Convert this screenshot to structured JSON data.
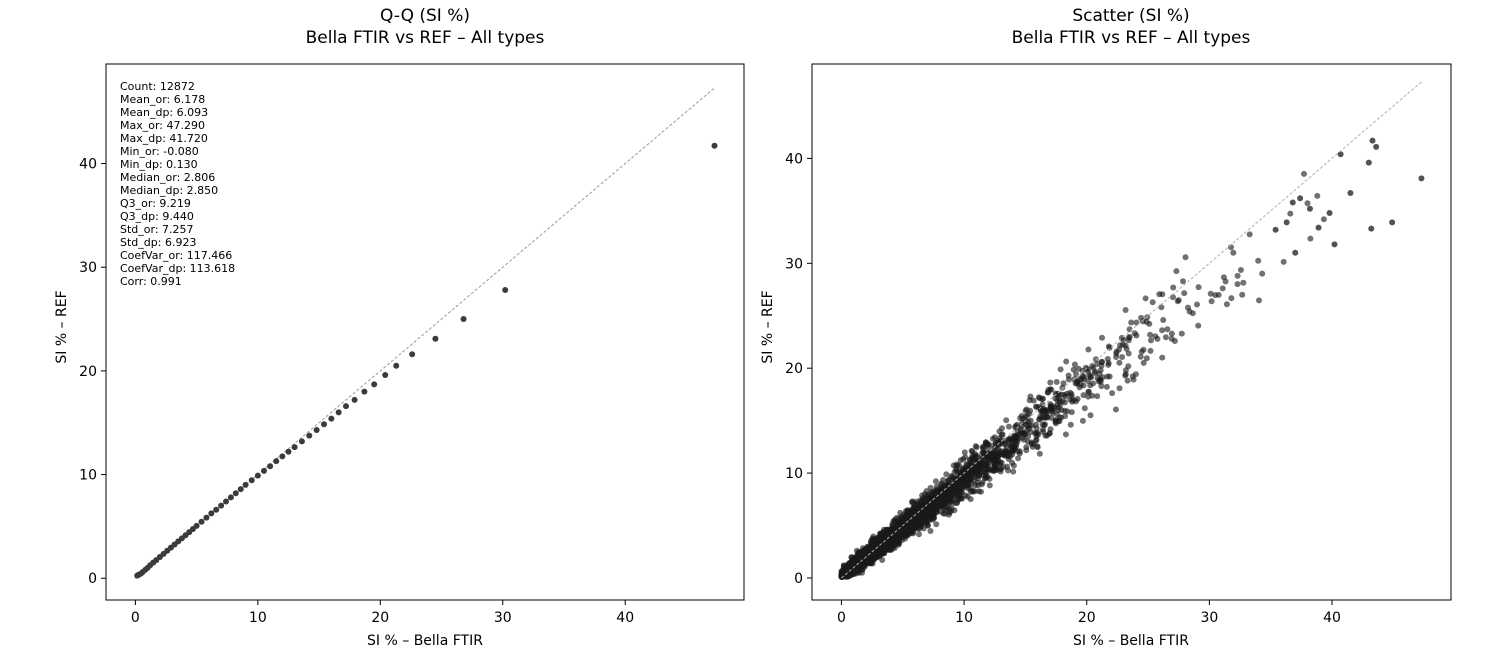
{
  "chart_data": [
    {
      "type": "scatter",
      "title": "Q-Q (SI %)",
      "subtitle": "Bella FTIR vs REF – All types",
      "xlabel": "SI % – Bella FTIR",
      "ylabel": "SI % – REF",
      "xlim": [
        -2.4,
        49.7
      ],
      "ylim": [
        -2.1,
        49.6
      ],
      "xticks": [
        0,
        10,
        20,
        30,
        40
      ],
      "yticks": [
        0,
        10,
        20,
        30,
        40
      ],
      "identity_line": [
        [
          0.0,
          0.0
        ],
        [
          47.29,
          47.29
        ]
      ],
      "marker_color": "#3b3b3b",
      "line_color": "#9a9a9a",
      "grid": false,
      "stats": [
        "Count: 12872",
        "Mean_or: 6.178",
        "Mean_dp: 6.093",
        "Max_or: 47.290",
        "Max_dp: 41.720",
        "Min_or: -0.080",
        "Min_dp: 0.130",
        "Median_or: 2.806",
        "Median_dp: 2.850",
        "Q3_or: 9.219",
        "Q3_dp: 9.440",
        "Std_or: 7.257",
        "Std_dp: 6.923",
        "CoefVar_or: 117.466",
        "CoefVar_dp: 113.618",
        "Corr: 0.991"
      ],
      "points": [
        [
          0.15,
          0.25
        ],
        [
          0.2,
          0.3
        ],
        [
          0.3,
          0.35
        ],
        [
          0.45,
          0.45
        ],
        [
          0.6,
          0.6
        ],
        [
          0.8,
          0.8
        ],
        [
          1.0,
          1.0
        ],
        [
          1.2,
          1.25
        ],
        [
          1.45,
          1.5
        ],
        [
          1.7,
          1.75
        ],
        [
          2.0,
          2.05
        ],
        [
          2.3,
          2.35
        ],
        [
          2.6,
          2.65
        ],
        [
          2.9,
          2.95
        ],
        [
          3.2,
          3.25
        ],
        [
          3.5,
          3.55
        ],
        [
          3.8,
          3.85
        ],
        [
          4.1,
          4.15
        ],
        [
          4.4,
          4.45
        ],
        [
          4.7,
          4.75
        ],
        [
          5.0,
          5.05
        ],
        [
          5.4,
          5.45
        ],
        [
          5.8,
          5.85
        ],
        [
          6.2,
          6.25
        ],
        [
          6.6,
          6.6
        ],
        [
          7.0,
          7.0
        ],
        [
          7.4,
          7.4
        ],
        [
          7.8,
          7.8
        ],
        [
          8.2,
          8.2
        ],
        [
          8.6,
          8.6
        ],
        [
          9.0,
          9.0
        ],
        [
          9.5,
          9.45
        ],
        [
          10.0,
          9.9
        ],
        [
          10.5,
          10.35
        ],
        [
          11.0,
          10.8
        ],
        [
          11.5,
          11.3
        ],
        [
          12.0,
          11.75
        ],
        [
          12.5,
          12.2
        ],
        [
          13.0,
          12.65
        ],
        [
          13.6,
          13.2
        ],
        [
          14.2,
          13.75
        ],
        [
          14.8,
          14.3
        ],
        [
          15.4,
          14.85
        ],
        [
          16.0,
          15.4
        ],
        [
          16.6,
          16.0
        ],
        [
          17.2,
          16.6
        ],
        [
          17.9,
          17.2
        ],
        [
          18.7,
          18.0
        ],
        [
          19.5,
          18.7
        ],
        [
          20.4,
          19.6
        ],
        [
          21.3,
          20.5
        ],
        [
          22.6,
          21.6
        ],
        [
          24.5,
          23.1
        ],
        [
          26.8,
          25.0
        ],
        [
          30.2,
          27.8
        ],
        [
          47.29,
          41.72
        ]
      ]
    },
    {
      "type": "scatter",
      "title": "Scatter (SI %)",
      "subtitle": "Bella FTIR vs REF – All types",
      "xlabel": "SI % – Bella FTIR",
      "ylabel": "SI % – REF",
      "xlim": [
        -2.4,
        49.7
      ],
      "ylim": [
        -2.1,
        49.0
      ],
      "xticks": [
        0,
        10,
        20,
        30,
        40
      ],
      "yticks": [
        0,
        10,
        20,
        30,
        40
      ],
      "identity_line": [
        [
          0.0,
          0.0
        ],
        [
          47.29,
          47.29
        ]
      ],
      "marker_color": "#1a1a1a",
      "line_color": "#b0b0b0",
      "grid": false,
      "count": 12872,
      "corr": 0.991,
      "notable_points": [
        [
          47.29,
          38.1
        ],
        [
          43.3,
          41.7
        ],
        [
          43.6,
          41.1
        ],
        [
          43.0,
          39.6
        ],
        [
          40.7,
          40.4
        ],
        [
          44.9,
          33.9
        ],
        [
          43.2,
          33.3
        ],
        [
          41.5,
          36.7
        ],
        [
          39.8,
          34.8
        ],
        [
          38.2,
          35.2
        ],
        [
          37.4,
          36.2
        ],
        [
          36.8,
          35.8
        ],
        [
          40.2,
          31.8
        ],
        [
          38.9,
          33.4
        ],
        [
          37.0,
          31.0
        ],
        [
          36.3,
          33.9
        ],
        [
          35.4,
          33.2
        ]
      ]
    }
  ]
}
